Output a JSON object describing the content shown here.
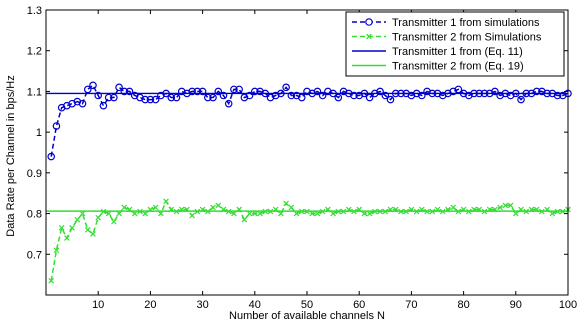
{
  "chart_data": {
    "type": "line",
    "xlabel": "Number of available channels N",
    "ylabel": "Data Rate per Channel in bps/Hz",
    "xlim": [
      0,
      100
    ],
    "ylim": [
      0.6,
      1.3
    ],
    "xticks": [
      10,
      20,
      30,
      40,
      50,
      60,
      70,
      80,
      90,
      100
    ],
    "yticks": [
      0.7,
      0.8,
      0.9,
      1.0,
      1.1,
      1.2,
      1.3
    ],
    "xtick_labels": [
      "10",
      "20",
      "30",
      "40",
      "50",
      "60",
      "70",
      "80",
      "90",
      "100"
    ],
    "ytick_labels": [
      "0.7",
      "0.8",
      "0.9",
      "1",
      "1.1",
      "1.2",
      "1.3"
    ],
    "grid": false,
    "legend_position": "top-right",
    "x": [
      1,
      2,
      3,
      4,
      5,
      6,
      7,
      8,
      9,
      10,
      11,
      12,
      13,
      14,
      15,
      16,
      17,
      18,
      19,
      20,
      21,
      22,
      23,
      24,
      25,
      26,
      27,
      28,
      29,
      30,
      31,
      32,
      33,
      34,
      35,
      36,
      37,
      38,
      39,
      40,
      41,
      42,
      43,
      44,
      45,
      46,
      47,
      48,
      49,
      50,
      51,
      52,
      53,
      54,
      55,
      56,
      57,
      58,
      59,
      60,
      61,
      62,
      63,
      64,
      65,
      66,
      67,
      68,
      69,
      70,
      71,
      72,
      73,
      74,
      75,
      76,
      77,
      78,
      79,
      80,
      81,
      82,
      83,
      84,
      85,
      86,
      87,
      88,
      89,
      90,
      91,
      92,
      93,
      94,
      95,
      96,
      97,
      98,
      99,
      100
    ],
    "series": [
      {
        "name": "Transmitter 1 from simulations",
        "color": "#0000cc",
        "style": "dashed-circle",
        "values": [
          0.94,
          1.015,
          1.06,
          1.065,
          1.07,
          1.075,
          1.07,
          1.105,
          1.115,
          1.09,
          1.065,
          1.085,
          1.085,
          1.11,
          1.1,
          1.1,
          1.09,
          1.085,
          1.08,
          1.08,
          1.08,
          1.09,
          1.095,
          1.085,
          1.085,
          1.1,
          1.095,
          1.1,
          1.1,
          1.1,
          1.085,
          1.085,
          1.1,
          1.09,
          1.07,
          1.105,
          1.105,
          1.085,
          1.09,
          1.1,
          1.1,
          1.095,
          1.085,
          1.09,
          1.095,
          1.11,
          1.09,
          1.09,
          1.085,
          1.1,
          1.095,
          1.1,
          1.09,
          1.1,
          1.095,
          1.085,
          1.1,
          1.095,
          1.09,
          1.09,
          1.095,
          1.085,
          1.095,
          1.1,
          1.09,
          1.08,
          1.095,
          1.095,
          1.095,
          1.09,
          1.095,
          1.09,
          1.1,
          1.095,
          1.095,
          1.09,
          1.095,
          1.1,
          1.105,
          1.095,
          1.09,
          1.095,
          1.095,
          1.095,
          1.095,
          1.1,
          1.09,
          1.095,
          1.09,
          1.095,
          1.08,
          1.095,
          1.095,
          1.1,
          1.1,
          1.095,
          1.095,
          1.09,
          1.09,
          1.095
        ]
      },
      {
        "name": "Transmitter 2 from Simulations",
        "color": "#33dd33",
        "style": "dashed-x",
        "values": [
          0.635,
          0.71,
          0.765,
          0.74,
          0.765,
          0.785,
          0.8,
          0.76,
          0.75,
          0.79,
          0.805,
          0.8,
          0.78,
          0.8,
          0.815,
          0.81,
          0.8,
          0.805,
          0.8,
          0.81,
          0.815,
          0.8,
          0.83,
          0.81,
          0.805,
          0.81,
          0.81,
          0.795,
          0.805,
          0.81,
          0.805,
          0.815,
          0.82,
          0.81,
          0.805,
          0.8,
          0.81,
          0.785,
          0.8,
          0.8,
          0.8,
          0.805,
          0.805,
          0.81,
          0.8,
          0.825,
          0.815,
          0.8,
          0.805,
          0.805,
          0.8,
          0.8,
          0.805,
          0.81,
          0.8,
          0.805,
          0.805,
          0.81,
          0.805,
          0.81,
          0.8,
          0.8,
          0.805,
          0.805,
          0.805,
          0.81,
          0.81,
          0.805,
          0.805,
          0.81,
          0.805,
          0.81,
          0.805,
          0.805,
          0.81,
          0.805,
          0.81,
          0.815,
          0.805,
          0.81,
          0.805,
          0.81,
          0.81,
          0.805,
          0.81,
          0.81,
          0.815,
          0.82,
          0.82,
          0.8,
          0.81,
          0.805,
          0.81,
          0.81,
          0.805,
          0.81,
          0.8,
          0.805,
          0.805,
          0.81
        ]
      },
      {
        "name": "Transmitter 1  from (Eq. 11)",
        "color": "#0000cc",
        "style": "solid",
        "values_constant": 1.095
      },
      {
        "name": "Transmitter 2 from (Eq. 19)",
        "color": "#33dd33",
        "style": "solid",
        "values_constant": 0.806
      }
    ]
  }
}
